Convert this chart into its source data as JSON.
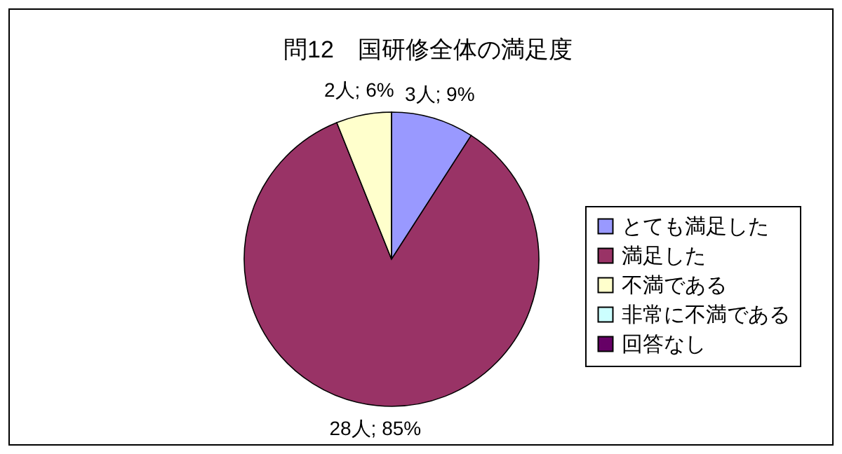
{
  "chart_data": {
    "type": "pie",
    "title": "問12　国研修全体の満足度",
    "categories": [
      "とても満足した",
      "満足した",
      "不満である",
      "非常に不満である",
      "回答なし"
    ],
    "values": [
      3,
      28,
      2,
      0,
      0
    ],
    "colors": [
      "#9999ff",
      "#993366",
      "#ffffcc",
      "#ccffff",
      "#660066"
    ],
    "value_labels": [
      "3人; 9%",
      "28人; 85%",
      "2人; 6%",
      null,
      null
    ],
    "legend": "right"
  }
}
